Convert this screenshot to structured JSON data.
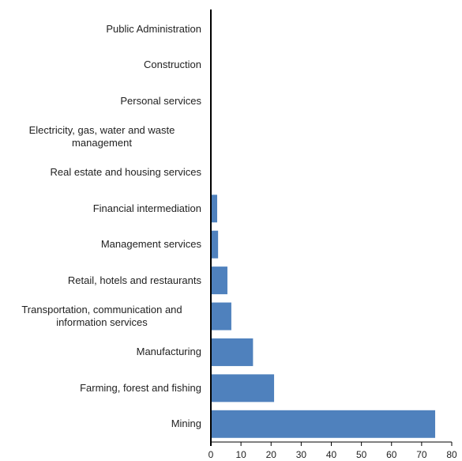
{
  "chart_data": {
    "type": "hbar",
    "categories": [
      "Public Administration",
      "Construction",
      "Personal services",
      "Electricity, gas, water and waste management",
      "Real estate and housing services",
      "Financial intermediation",
      "Management services",
      "Retail, hotels and restaurants",
      "Transportation, communication and information services",
      "Manufacturing",
      "Farming, forest and fishing",
      "Mining"
    ],
    "values": [
      0,
      0,
      0,
      0,
      0,
      2.1,
      2.4,
      5.5,
      6.8,
      14,
      21,
      74.5
    ],
    "color": "#4f81bd",
    "xlim": [
      0,
      80
    ],
    "xticks": [
      0,
      10,
      20,
      30,
      40,
      50,
      60,
      70,
      80
    ]
  }
}
